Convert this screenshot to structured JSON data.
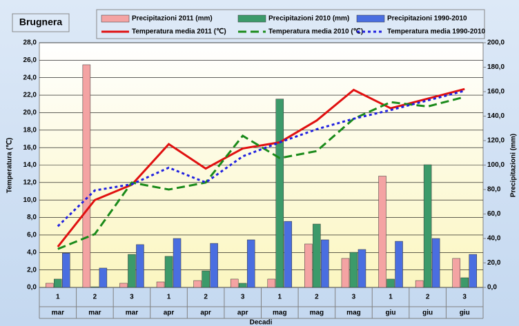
{
  "chart_data": {
    "type": "combo",
    "title": "Brugnera",
    "categories": [
      "1",
      "2",
      "3",
      "1",
      "2",
      "3",
      "1",
      "2",
      "3",
      "1",
      "2",
      "3"
    ],
    "months": [
      "mar",
      "mar",
      "mar",
      "apr",
      "apr",
      "apr",
      "mag",
      "mag",
      "mag",
      "giu",
      "giu",
      "giu"
    ],
    "xlabel": "Decadi",
    "ylabel": "Temperatura (℃)",
    "y2label": "Precipitazioni (mm)",
    "ylim": [
      0,
      28
    ],
    "yticks": [
      {
        "value": 0,
        "label": "0,0"
      },
      {
        "value": 2,
        "label": "2,0"
      },
      {
        "value": 4,
        "label": "4,0"
      },
      {
        "value": 6,
        "label": "6,0"
      },
      {
        "value": 8,
        "label": "8,0"
      },
      {
        "value": 10,
        "label": "10,0"
      },
      {
        "value": 12,
        "label": "12,0"
      },
      {
        "value": 14,
        "label": "14,0"
      },
      {
        "value": 16,
        "label": "16,0"
      },
      {
        "value": 18,
        "label": "18,0"
      },
      {
        "value": 20,
        "label": "20,0"
      },
      {
        "value": 22,
        "label": "22,0"
      },
      {
        "value": 24,
        "label": "24,0"
      },
      {
        "value": 26,
        "label": "26,0"
      },
      {
        "value": 28,
        "label": "28,0"
      }
    ],
    "y2lim": [
      0,
      200
    ],
    "y2ticks": [
      {
        "value": 0,
        "label": "0,0"
      },
      {
        "value": 20,
        "label": "20,0"
      },
      {
        "value": 40,
        "label": "40,0"
      },
      {
        "value": 60,
        "label": "60,0"
      },
      {
        "value": 80,
        "label": "80,0"
      },
      {
        "value": 100,
        "label": "100,0"
      },
      {
        "value": 120,
        "label": "120,0"
      },
      {
        "value": 140,
        "label": "140,0"
      },
      {
        "value": 160,
        "label": "160,0"
      },
      {
        "value": 180,
        "label": "180,0"
      },
      {
        "value": 200,
        "label": "200,0"
      }
    ],
    "grid": true,
    "series": [
      {
        "name": "Precipitazioni 2011 (mm)",
        "type": "bar",
        "axis": "y2",
        "color": "#f4a3a3",
        "values": [
          3.4,
          182,
          3.4,
          4.5,
          5.6,
          6.8,
          6.8,
          35.5,
          23.7,
          91,
          5.6,
          23.7
        ]
      },
      {
        "name": "Precipitazioni 2010 (mm)",
        "type": "bar",
        "axis": "y2",
        "color": "#3c9a6a",
        "values": [
          6.8,
          0.5,
          27,
          25.4,
          13.5,
          3.4,
          154,
          51.8,
          28.7,
          6.8,
          100.3,
          7.9
        ]
      },
      {
        "name": "Precipitazioni 1990-2010",
        "type": "bar",
        "axis": "y2",
        "color": "#4a6ee0",
        "values": [
          28,
          15.8,
          35,
          40,
          36,
          38.9,
          54,
          38.9,
          31,
          37.7,
          40,
          27
        ]
      },
      {
        "name": "Temperatura media 2011 (℃)",
        "type": "line",
        "axis": "y",
        "color": "#e01010",
        "values": [
          4.65,
          10.0,
          11.75,
          16.4,
          13.6,
          15.9,
          16.6,
          19.1,
          22.6,
          20.5,
          21.6,
          22.7
        ]
      },
      {
        "name": "Temperatura media 2010 (℃)",
        "type": "line",
        "axis": "y",
        "color": "#1a8a1a",
        "dash": "12 6",
        "values": [
          4.4,
          6.1,
          12.0,
          11.2,
          12.0,
          17.35,
          14.8,
          15.6,
          19.3,
          21.2,
          20.7,
          21.8
        ]
      },
      {
        "name": "Temperatura media 1990-2010",
        "type": "line",
        "axis": "y",
        "color": "#2020e0",
        "dash": "4 4",
        "values": [
          7.0,
          11.1,
          11.8,
          13.7,
          12.0,
          15.0,
          16.6,
          18.1,
          19.3,
          20.3,
          21.4,
          22.5
        ]
      }
    ]
  }
}
